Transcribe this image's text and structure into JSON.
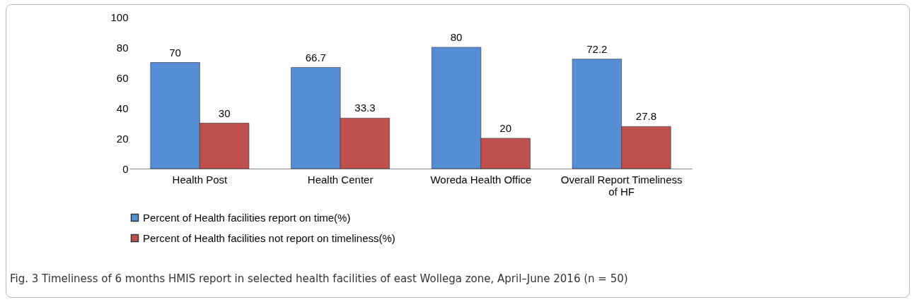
{
  "chart_data": {
    "type": "bar",
    "categories": [
      "Health Post",
      "Health Center",
      "Woreda  Health Office",
      "Overall Report Timeliness of HF"
    ],
    "series": [
      {
        "name": "Percent of Health facilities  report on time(%)",
        "color": "#558ed5",
        "values": [
          70,
          66.7,
          80,
          72.2
        ]
      },
      {
        "name": "Percent of  Health facilities not report on timeliness(%)",
        "color": "#c0504d",
        "values": [
          30,
          33.3,
          20,
          27.8
        ]
      }
    ],
    "ylim": [
      0,
      100
    ],
    "yticks": [
      0,
      20,
      40,
      60,
      80,
      100
    ],
    "grid": false,
    "legend": "bottom",
    "data_labels": true,
    "annotations": [
      "Fig. 3 Timeliness of 6 months HMIS report in selected health facilities of east Wollega zone, April–June 2016 (n = 50)"
    ]
  }
}
